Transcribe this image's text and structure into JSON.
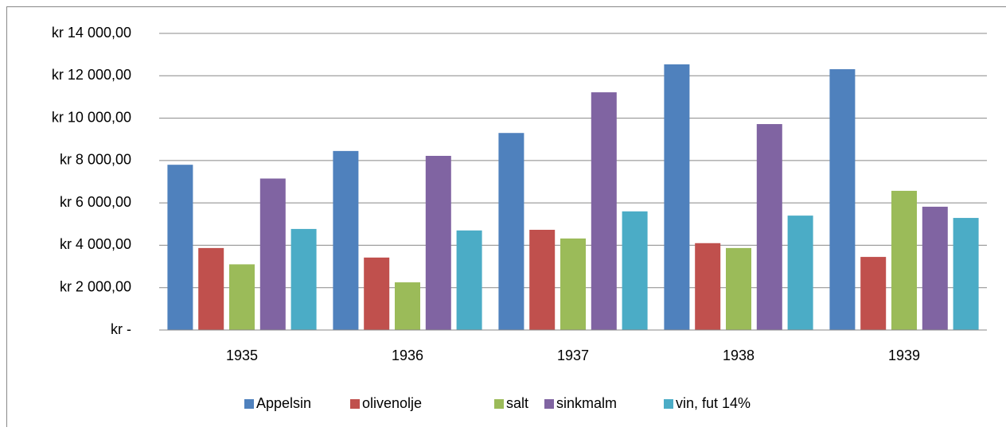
{
  "chart_data": {
    "type": "bar",
    "categories": [
      "1935",
      "1936",
      "1937",
      "1938",
      "1939"
    ],
    "series": [
      {
        "name": "Appelsin",
        "color": "#4f81bd",
        "values": [
          7800,
          8450,
          9300,
          12540,
          12310
        ]
      },
      {
        "name": "olivenolje",
        "color": "#c0504d",
        "values": [
          3870,
          3420,
          4730,
          4100,
          3450
        ]
      },
      {
        "name": "salt",
        "color": "#9bbb59",
        "values": [
          3100,
          2250,
          4320,
          3870,
          6570
        ]
      },
      {
        "name": "sinkmalm",
        "color": "#8064a2",
        "values": [
          7150,
          8220,
          11220,
          9720,
          5820
        ]
      },
      {
        "name": "vin, fut 14%",
        "color": "#4bacc6",
        "values": [
          4770,
          4700,
          5600,
          5400,
          5290
        ]
      }
    ],
    "ylim": [
      0,
      14000
    ],
    "yticks": [
      {
        "value": 0,
        "label": "kr -"
      },
      {
        "value": 2000,
        "label": "kr 2 000,00"
      },
      {
        "value": 4000,
        "label": "kr 4 000,00"
      },
      {
        "value": 6000,
        "label": "kr 6 000,00"
      },
      {
        "value": 8000,
        "label": "kr 8 000,00"
      },
      {
        "value": 10000,
        "label": "kr 10 000,00"
      },
      {
        "value": 12000,
        "label": "kr 12 000,00"
      },
      {
        "value": 14000,
        "label": "kr 14 000,00"
      }
    ],
    "grid": true,
    "legend": "bottom"
  }
}
